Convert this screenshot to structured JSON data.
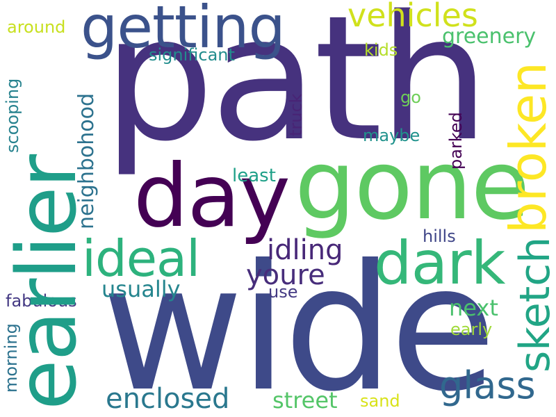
{
  "words": {
    "path": "path",
    "wide": "wide",
    "earlier": "earlier",
    "getting": "getting",
    "gone": "gone",
    "day": "day",
    "dark": "dark",
    "broken": "broken",
    "ideal": "ideal",
    "sketch": "sketch",
    "glass": "glass",
    "vehicles": "vehicles",
    "enclosed": "enclosed",
    "idling": "idling",
    "youre": "youre",
    "neighbohood": "neighbohood",
    "usually": "usually",
    "greenery": "greenery",
    "street": "street",
    "next": "next",
    "significant": "significant",
    "fabulous": "fabulous",
    "scooping": "scooping",
    "around": "around",
    "kids": "kids",
    "truck": "truck",
    "least": "least",
    "maybe": "maybe",
    "parked": "parked",
    "go": "go",
    "hills": "hills",
    "use": "use",
    "early": "early",
    "morning": "morning",
    "sand": "sand"
  },
  "colors": {
    "path": "#46327e",
    "wide": "#3e4a89",
    "earlier": "#1f9e89",
    "getting": "#3b528b",
    "gone": "#5ec962",
    "day": "#440154",
    "dark": "#35b779",
    "broken": "#fde725",
    "ideal": "#2db27d",
    "sketch": "#21a585",
    "glass": "#31688e",
    "vehicles": "#d0e11c",
    "enclosed": "#2a788e",
    "idling": "#482878",
    "youre": "#472d7b",
    "neighbohood": "#2c728e",
    "usually": "#25858e",
    "greenery": "#4ac16d",
    "street": "#54c568",
    "next": "#4ac16d",
    "significant": "#228d8d",
    "fabulous": "#443983",
    "scooping": "#26828e",
    "around": "#c8e020",
    "kids": "#b5de2b",
    "truck": "#482475",
    "least": "#1fa088",
    "maybe": "#20928c",
    "parked": "#440154",
    "go": "#6ece58",
    "hills": "#404688",
    "use": "#443a83",
    "early": "#a0da39",
    "morning": "#2c728e",
    "sand": "#d8e219"
  }
}
